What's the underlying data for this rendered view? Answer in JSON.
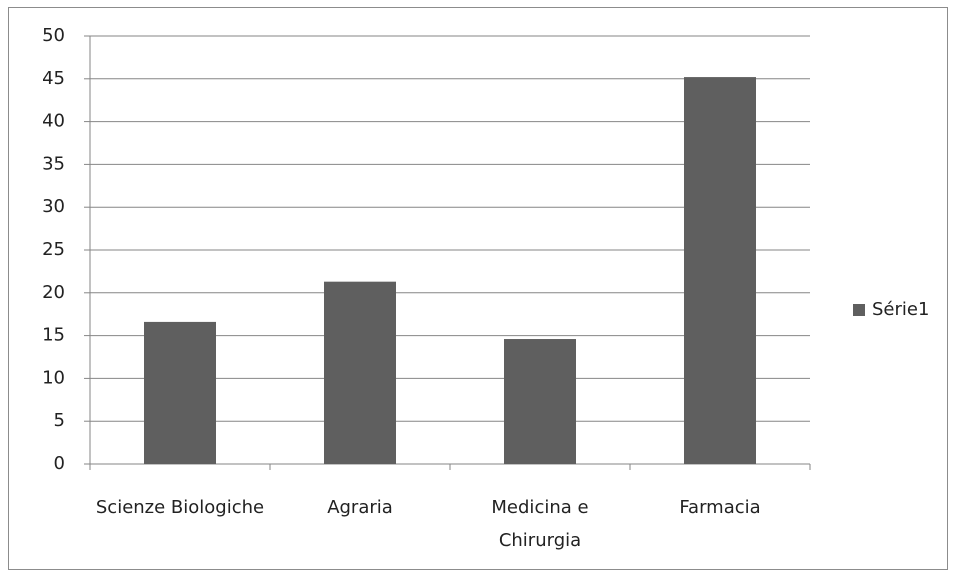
{
  "chart_data": {
    "type": "bar",
    "categories": [
      "Scienze Biologiche",
      "Agraria",
      "Medicina e Chirurgia",
      "Farmacia"
    ],
    "series": [
      {
        "name": "Série1",
        "color": "#5f5f5f",
        "values": [
          16.6,
          21.3,
          14.6,
          45.2
        ]
      }
    ],
    "ylim": [
      0,
      50
    ],
    "yticks": [
      0,
      5,
      10,
      15,
      20,
      25,
      30,
      35,
      40,
      45,
      50
    ],
    "grid": true,
    "legend": "right"
  }
}
